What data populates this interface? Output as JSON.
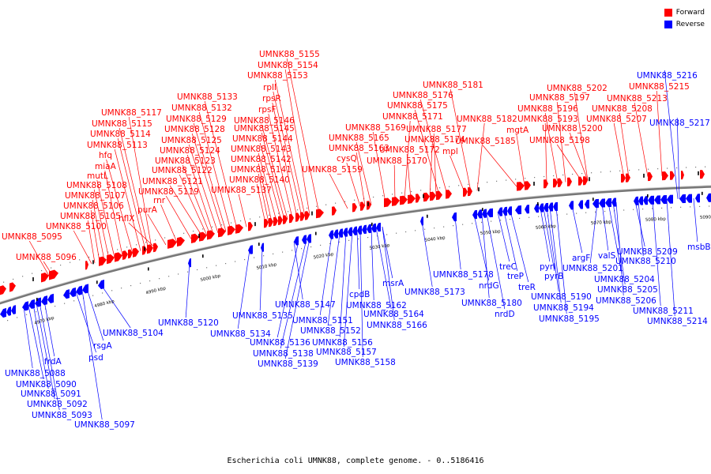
{
  "legend": {
    "forward_label": "Forward",
    "reverse_label": "Reverse",
    "forward_color": "#ff0000",
    "reverse_color": "#0000ff"
  },
  "caption": "Escherichia coli UMNK88, complete genome. - 0..5186416",
  "ticks": [
    "4970 kbp",
    "4980 kbp",
    "4990 kbp",
    "5000 kbp",
    "5010 kbp",
    "5020 kbp",
    "5030 kbp",
    "5040 kbp",
    "5050 kbp",
    "5060 kbp",
    "5070 kbp",
    "5080 kbp",
    "5090 kbp"
  ],
  "forward_labels": [
    "UMNK88_5095",
    "UMNK88_5096",
    "UMNK88_5100",
    "UMNK88_5105",
    "UMNK88_5106",
    "UMNK88_5107",
    "UMNK88_5108",
    "mutL",
    "miaA",
    "hfq",
    "hflX",
    "UMNK88_5113",
    "UMNK88_5114",
    "UMNK88_5115",
    "UMNK88_5117",
    "purA",
    "rnr",
    "UMNK88_5119",
    "UMNK88_5121",
    "UMNK88_5122",
    "UMNK88_5123",
    "UMNK88_5124",
    "UMNK88_5125",
    "UMNK88_5128",
    "UMNK88_5129",
    "UMNK88_5132",
    "UMNK88_5133",
    "UMNK88_5137",
    "UMNK88_5140",
    "UMNK88_5141",
    "UMNK88_5142",
    "UMNK88_5143",
    "UMNK88_5144",
    "UMNK88_5145",
    "UMNK88_5146",
    "rpsF",
    "rpsR",
    "rplI",
    "UMNK88_5153",
    "UMNK88_5154",
    "UMNK88_5155",
    "UMNK88_5159",
    "cysQ",
    "UMNK88_5163",
    "UMNK88_5165",
    "UMNK88_5169",
    "UMNK88_5170",
    "UMNK88_5171",
    "UMNK88_5172",
    "UMNK88_5174",
    "UMNK88_5175",
    "UMNK88_5176",
    "UMNK88_5177",
    "mpl",
    "UMNK88_5181",
    "UMNK88_5182",
    "UMNK88_5185",
    "mgtA",
    "UMNK88_5193",
    "UMNK88_5196",
    "UMNK88_5197",
    "UMNK88_5198",
    "UMNK88_5200",
    "UMNK88_5202",
    "UMNK88_5207",
    "UMNK88_5208",
    "UMNK88_5213",
    "UMNK88_5215"
  ],
  "reverse_labels": [
    "UMNK88_5088",
    "UMNK88_5090",
    "UMNK88_5091",
    "UMNK88_5092",
    "UMNK88_5093",
    "frdA",
    "psd",
    "rsgA",
    "UMNK88_5097",
    "UMNK88_5104",
    "UMNK88_5120",
    "UMNK88_5134",
    "UMNK88_5135",
    "UMNK88_5136",
    "UMNK88_5138",
    "UMNK88_5139",
    "UMNK88_5147",
    "UMNK88_5151",
    "UMNK88_5152",
    "UMNK88_5156",
    "UMNK88_5157",
    "UMNK88_5158",
    "cpdB",
    "UMNK88_5162",
    "UMNK88_5164",
    "UMNK88_5166",
    "msrA",
    "UMNK88_5173",
    "UMNK88_5178",
    "nrdG",
    "UMNK88_5180",
    "nrdD",
    "treC",
    "treP",
    "treR",
    "pyrI",
    "pyrB",
    "UMNK88_5190",
    "UMNK88_5194",
    "UMNK88_5195",
    "argF",
    "UMNK88_5201",
    "valS",
    "UMNK88_5204",
    "UMNK88_5205",
    "UMNK88_5206",
    "UMNK88_5209",
    "UMNK88_5210",
    "UMNK88_5211",
    "UMNK88_5214",
    "UMNK88_5216",
    "UMNK88_5217",
    "msbB"
  ]
}
